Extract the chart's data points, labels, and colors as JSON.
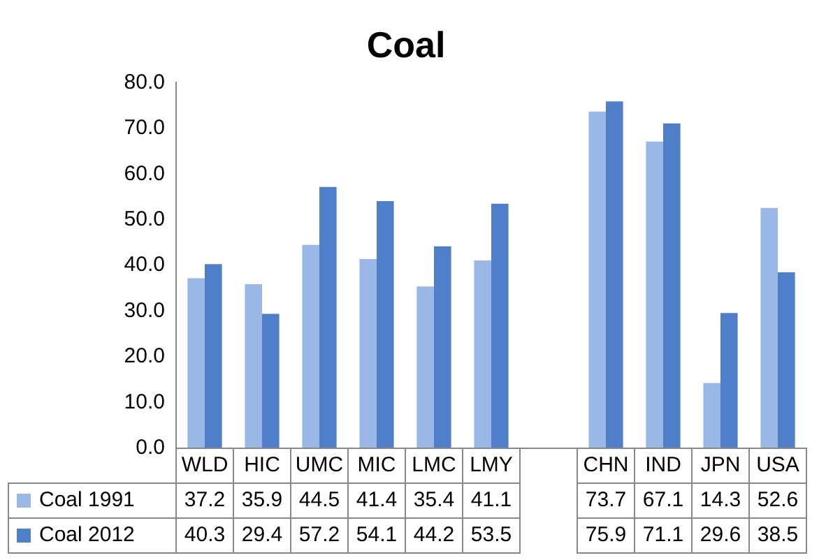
{
  "chart_data": {
    "type": "bar",
    "title": "Coal",
    "categories": [
      "WLD",
      "HIC",
      "UMC",
      "MIC",
      "LMC",
      "LMY",
      null,
      "CHN",
      "IND",
      "JPN",
      "USA"
    ],
    "series": [
      {
        "name": "Coal 1991",
        "color": "#9ab8e6",
        "values": [
          37.2,
          35.9,
          44.5,
          41.4,
          35.4,
          41.1,
          null,
          73.7,
          67.1,
          14.3,
          52.6
        ]
      },
      {
        "name": "Coal 2012",
        "color": "#4f7fc8",
        "values": [
          40.3,
          29.4,
          57.2,
          54.1,
          44.2,
          53.5,
          null,
          75.9,
          71.1,
          29.6,
          38.5
        ]
      }
    ],
    "ylim": [
      0,
      80
    ],
    "yticks": [
      {
        "value": 0,
        "label": "0.0"
      },
      {
        "value": 10,
        "label": "10.0"
      },
      {
        "value": 20,
        "label": "20.0"
      },
      {
        "value": 30,
        "label": "30.0"
      },
      {
        "value": 40,
        "label": "40.0"
      },
      {
        "value": 50,
        "label": "50.0"
      },
      {
        "value": 60,
        "label": "60.0"
      },
      {
        "value": 70,
        "label": "70.0"
      },
      {
        "value": 80,
        "label": "80.0"
      }
    ],
    "grid": false,
    "legend": "bottom left",
    "data_labels": true
  }
}
